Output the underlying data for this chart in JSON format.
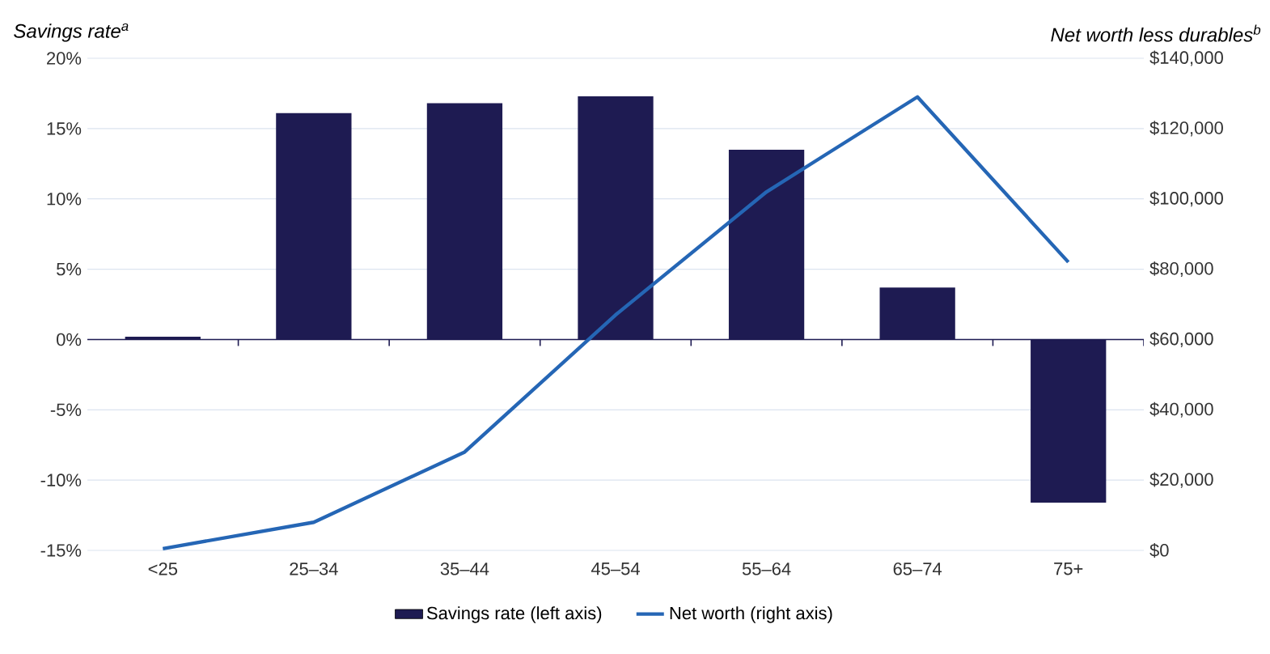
{
  "chart_data": {
    "type": "bar",
    "ylabel": "Savings rate$^{a}$",
    "y2label": "Net worth less durables$^{b}$",
    "categories": [
      "<25",
      "25–34",
      "35–44",
      "45–54",
      "55–64",
      "65–74",
      "75+"
    ],
    "series": [
      {
        "name": "Savings rate (left axis)",
        "color": "#1e1b52",
        "values": [
          0.2,
          16.1,
          16.8,
          17.3,
          13.5,
          3.7,
          -11.6
        ]
      },
      {
        "name": "Net worth (right axis)",
        "type": "line",
        "axis": "y2",
        "color": "#2566b5",
        "values": [
          500,
          8000,
          28000,
          67000,
          102000,
          129000,
          82000
        ]
      }
    ],
    "ylim": [
      -15,
      20
    ],
    "yticks": [
      {
        "value": -15,
        "label": "-15%"
      },
      {
        "value": -10,
        "label": "-10%"
      },
      {
        "value": -5,
        "label": "-5%"
      },
      {
        "value": 0,
        "label": "0%"
      },
      {
        "value": 5,
        "label": "5%"
      },
      {
        "value": 10,
        "label": "10%"
      },
      {
        "value": 15,
        "label": "15%"
      },
      {
        "value": 20,
        "label": "20%"
      }
    ],
    "y2lim": [
      0,
      140000
    ],
    "y2ticks": [
      {
        "value": 0,
        "label": "$0"
      },
      {
        "value": 20000,
        "label": "$20,000"
      },
      {
        "value": 40000,
        "label": "$40,000"
      },
      {
        "value": 60000,
        "label": "$60,000"
      },
      {
        "value": 80000,
        "label": "$80,000"
      },
      {
        "value": 100000,
        "label": "$100,000"
      },
      {
        "value": 120000,
        "label": "$120,000"
      },
      {
        "value": 140000,
        "label": "$140,000"
      }
    ],
    "grid": "y",
    "legend": "bottom"
  }
}
